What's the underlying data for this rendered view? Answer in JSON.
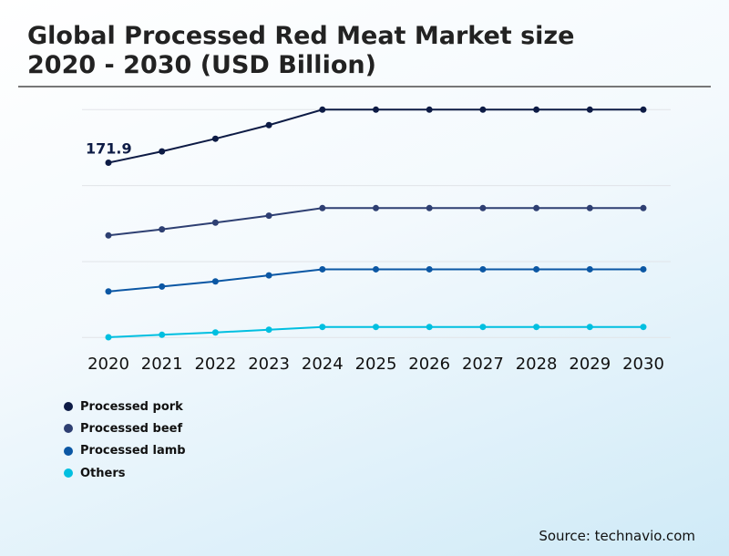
{
  "chart_data": {
    "type": "line",
    "title": "Global Processed Red Meat Market size\n2020 - 2030 (USD Billion)",
    "x": [
      "2020",
      "2021",
      "2022",
      "2023",
      "2024",
      "2025",
      "2026",
      "2027",
      "2028",
      "2029",
      "2030"
    ],
    "ylim": [
      0,
      224.1
    ],
    "grid": true,
    "legend_position": "bottom-left",
    "series": [
      {
        "name": "Processed pork",
        "color": "#0d1b45",
        "values": [
          171.9,
          183.0,
          195.5,
          208.9,
          224.1,
          224.1,
          224.1,
          224.1,
          224.1,
          224.1,
          224.1
        ]
      },
      {
        "name": "Processed beef",
        "color": "#2e3f72",
        "values": [
          100.4,
          106.4,
          113.0,
          119.8,
          127.3,
          127.3,
          127.3,
          127.3,
          127.3,
          127.3,
          127.3
        ]
      },
      {
        "name": "Processed lamb",
        "color": "#0b57a4",
        "values": [
          45.3,
          50.1,
          55.2,
          61.1,
          67.1,
          67.1,
          67.1,
          67.1,
          67.1,
          67.1,
          67.1
        ]
      },
      {
        "name": "Others",
        "color": "#00bfe0",
        "values": [
          0.3,
          2.7,
          5.0,
          7.7,
          10.4,
          10.4,
          10.4,
          10.4,
          10.4,
          10.4,
          10.4
        ]
      }
    ],
    "annotations": [
      {
        "series": "Processed pork",
        "x": "2020",
        "text": "171.9"
      }
    ]
  },
  "source": "Source: technavio.com"
}
